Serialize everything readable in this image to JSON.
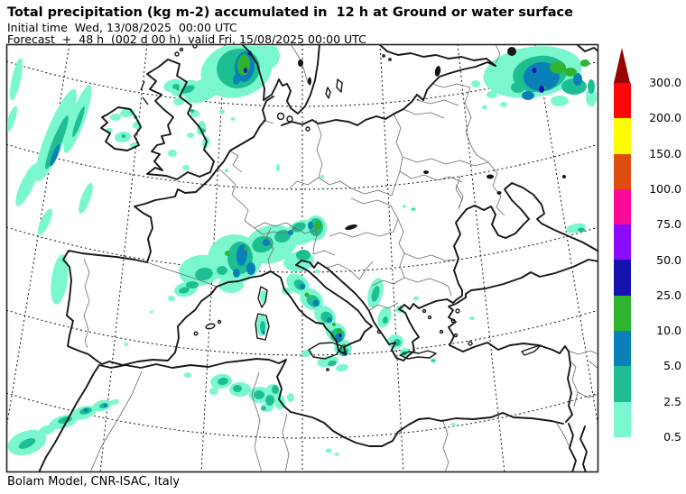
{
  "header": {
    "title": "Total precipitation (kg m-2) accumulated in  12 h at Ground or water surface",
    "initial_time": "Initial time  Wed, 13/08/2025  00:00 UTC",
    "forecast": "Forecast  +  48 h  (002 d 00 h)  valid Fri, 15/08/2025 00:00 UTC"
  },
  "footer": {
    "credit": "Bolam Model, CNR-ISAC, Italy"
  },
  "legend": {
    "units": "kg m-2",
    "ticks": [
      "300.0",
      "200.0",
      "150.0",
      "100.0",
      "75.0",
      "50.0",
      "25.0",
      "10.0",
      "5.0",
      "2.5",
      "0.5"
    ],
    "colors": [
      "#fb0707",
      "#fdfd00",
      "#dd4e0e",
      "#fb0a96",
      "#8b0bfb",
      "#1413b0",
      "#2fb431",
      "#0a80b8",
      "#1dbf92",
      "#7bf7d0"
    ],
    "overflow_color": "#990000",
    "precip_levels": [
      {
        "range": "0.5-2.5",
        "color": "#7bf7d0"
      },
      {
        "range": "2.5-5.0",
        "color": "#1dbf92"
      },
      {
        "range": "5.0-10.0",
        "color": "#0a80b8"
      },
      {
        "range": "10.0-25.0",
        "color": "#2fb431"
      },
      {
        "range": "25.0-50.0",
        "color": "#1413b0"
      },
      {
        "range": "50.0-75.0",
        "color": "#8b0bfb"
      },
      {
        "range": "75.0-100.0",
        "color": "#fb0a96"
      },
      {
        "range": "100.0-150.0",
        "color": "#dd4e0e"
      },
      {
        "range": "150.0-200.0",
        "color": "#fdfd00"
      },
      {
        "range": "200.0-300.0",
        "color": "#fb0707"
      },
      {
        "range": "> 300.0",
        "color": "#990000"
      }
    ]
  },
  "map": {
    "region": "Europe, Mediterranean and North Africa",
    "graticule": "dashed lat/lon grid, curved (conformal projection)",
    "precipitation_regions": [
      "NE Atlantic frontal bands west of Ireland (cores 2.5-10)",
      "Scotland, Irish Sea and Ireland scattered showers (0.5-5)",
      "Southern Norway / Skagerrak maximum (cores 10-50)",
      "NW Russia broad rain shield (cores 5-50)",
      "Alps and southern France widespread rain (cores 2.5-25)",
      "Apennines, southern Italy, Calabria and Sicily (cores 5-50)",
      "Sardinia showers (2.5-10)",
      "Albania and western Greece coastal band (0.5-5)",
      "Atlas mountains, Morocco band (cores 2.5-10)",
      "Northern Algeria / Tunisia showers (0.5-5)",
      "Eastern Black Sea coast light rain (0.5-5)"
    ]
  }
}
